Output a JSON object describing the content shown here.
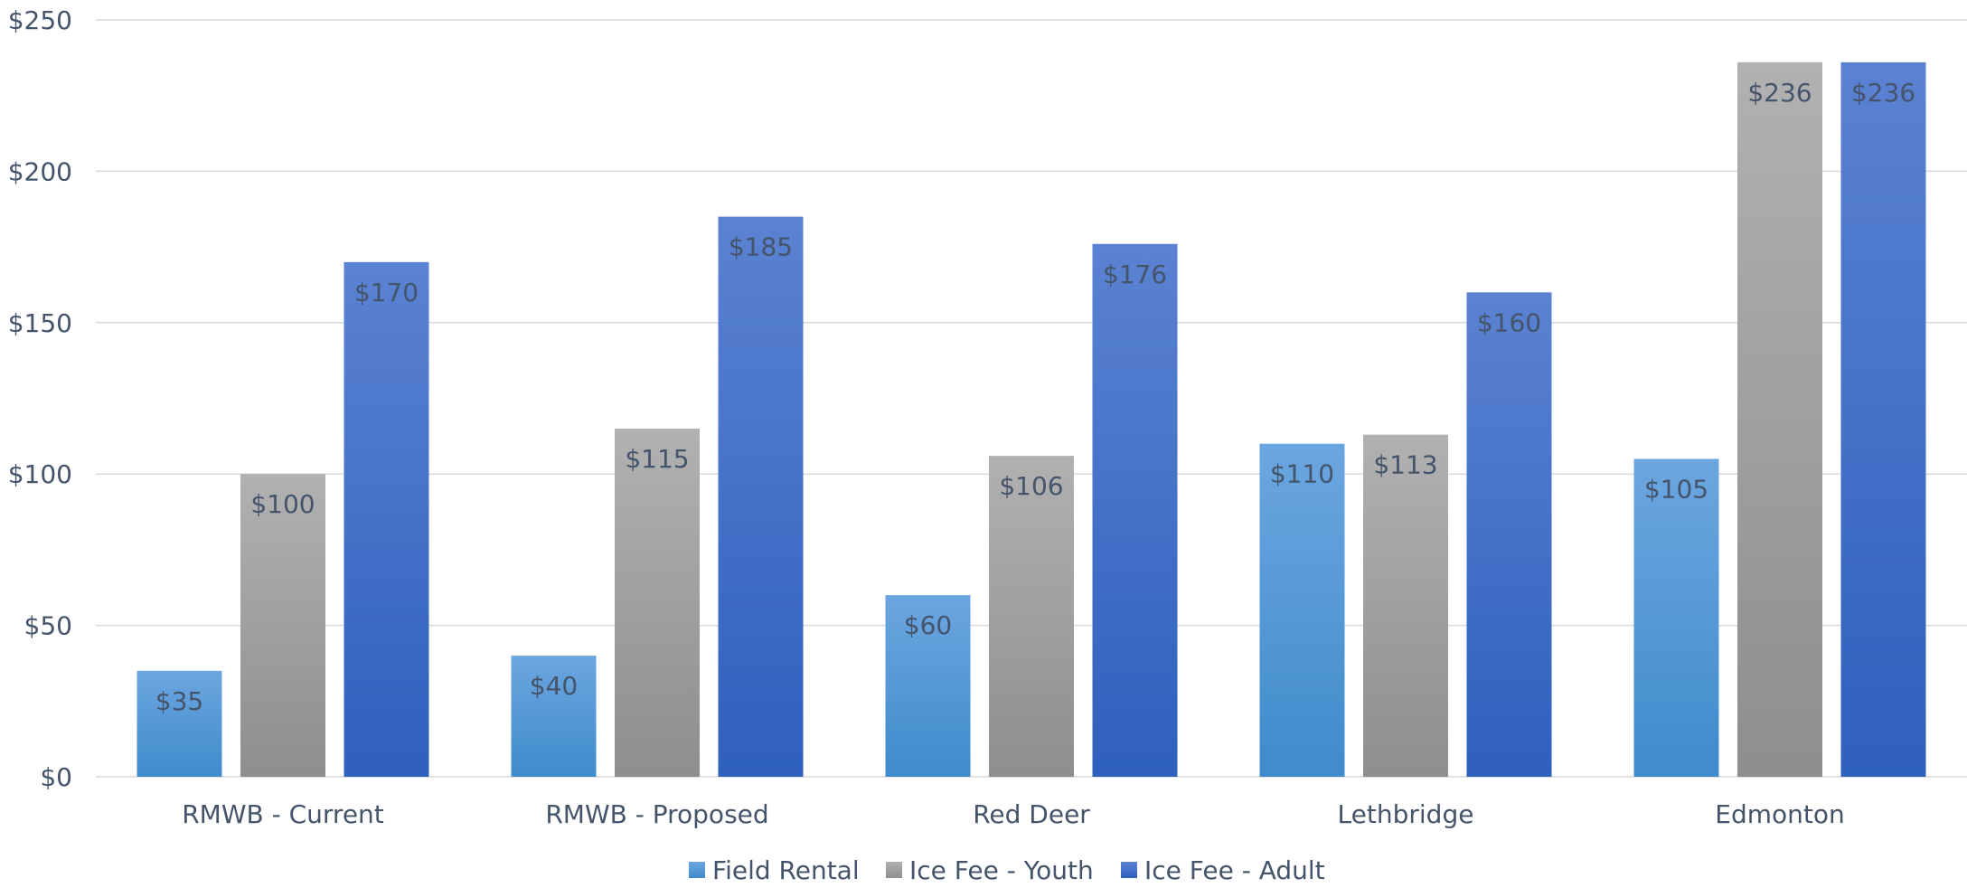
{
  "chart_data": {
    "type": "bar",
    "title": "",
    "xlabel": "",
    "ylabel": "",
    "categories": [
      "RMWB - Current",
      "RMWB - Proposed",
      "Red Deer",
      "Lethbridge",
      "Edmonton"
    ],
    "series": [
      {
        "name": "Field Rental",
        "values": [
          35,
          40,
          60,
          110,
          105
        ],
        "color_top": "#6CA6E0",
        "color_bottom": "#3F8BCB"
      },
      {
        "name": "Ice Fee - Youth",
        "values": [
          100,
          115,
          106,
          113,
          236
        ],
        "color_top": "#B1B1B1",
        "color_bottom": "#8E8E8E"
      },
      {
        "name": "Ice Fee - Adult",
        "values": [
          170,
          185,
          176,
          160,
          236
        ],
        "color_top": "#5B82D2",
        "color_bottom": "#2E60BD"
      }
    ],
    "ylim": [
      0,
      250
    ],
    "yticks": [
      0,
      50,
      100,
      150,
      200,
      250
    ],
    "ytick_labels": [
      "$0",
      "$50",
      "$100",
      "$150",
      "$200",
      "$250"
    ],
    "data_labels": [
      [
        "$35",
        "$40",
        "$60",
        "$110",
        "$105"
      ],
      [
        "$100",
        "$115",
        "$106",
        "$113",
        "$236"
      ],
      [
        "$170",
        "$185",
        "$176",
        "$160",
        "$236"
      ]
    ],
    "grid": true,
    "legend_position": "bottom",
    "text_color": "#44546A",
    "grid_color": "#D9D9D9"
  }
}
